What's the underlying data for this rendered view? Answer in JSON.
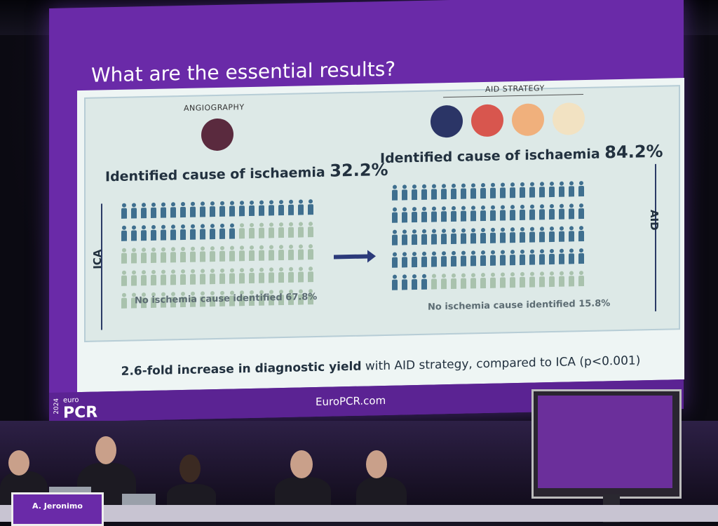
{
  "slide": {
    "title": "What are the essential results?",
    "angiography_label": "ANGIOGRAPHY",
    "aid_strategy_label": "AID STRATEGY",
    "left_heading_text": "Identified cause of ischaemia",
    "left_heading_pct": "32.2%",
    "right_heading_text": "Identified cause of ischaemia",
    "right_heading_pct": "84.2%",
    "left_no_cause": "No ischemia cause identified 67.8%",
    "right_no_cause": "No ischemia cause identified 15.8%",
    "left_side_label": "ICA",
    "right_side_label": "AID",
    "conclusion_bold": "2.6-fold increase in diagnostic yield",
    "conclusion_rest": " with AID strategy, compared to ICA (p<0.001)",
    "footer_url": "EuroPCR.com",
    "logo_top": "euro",
    "logo_main": "PCR",
    "logo_year": "2024",
    "left_identified_fraction": 0.322,
    "right_identified_fraction": 0.842
  },
  "stage": {
    "nameplate": "A. Jeronimo"
  },
  "colors": {
    "purple": "#6a2aa8",
    "identified": "#3f6f8f",
    "not_identified": "#a9c2ad"
  }
}
